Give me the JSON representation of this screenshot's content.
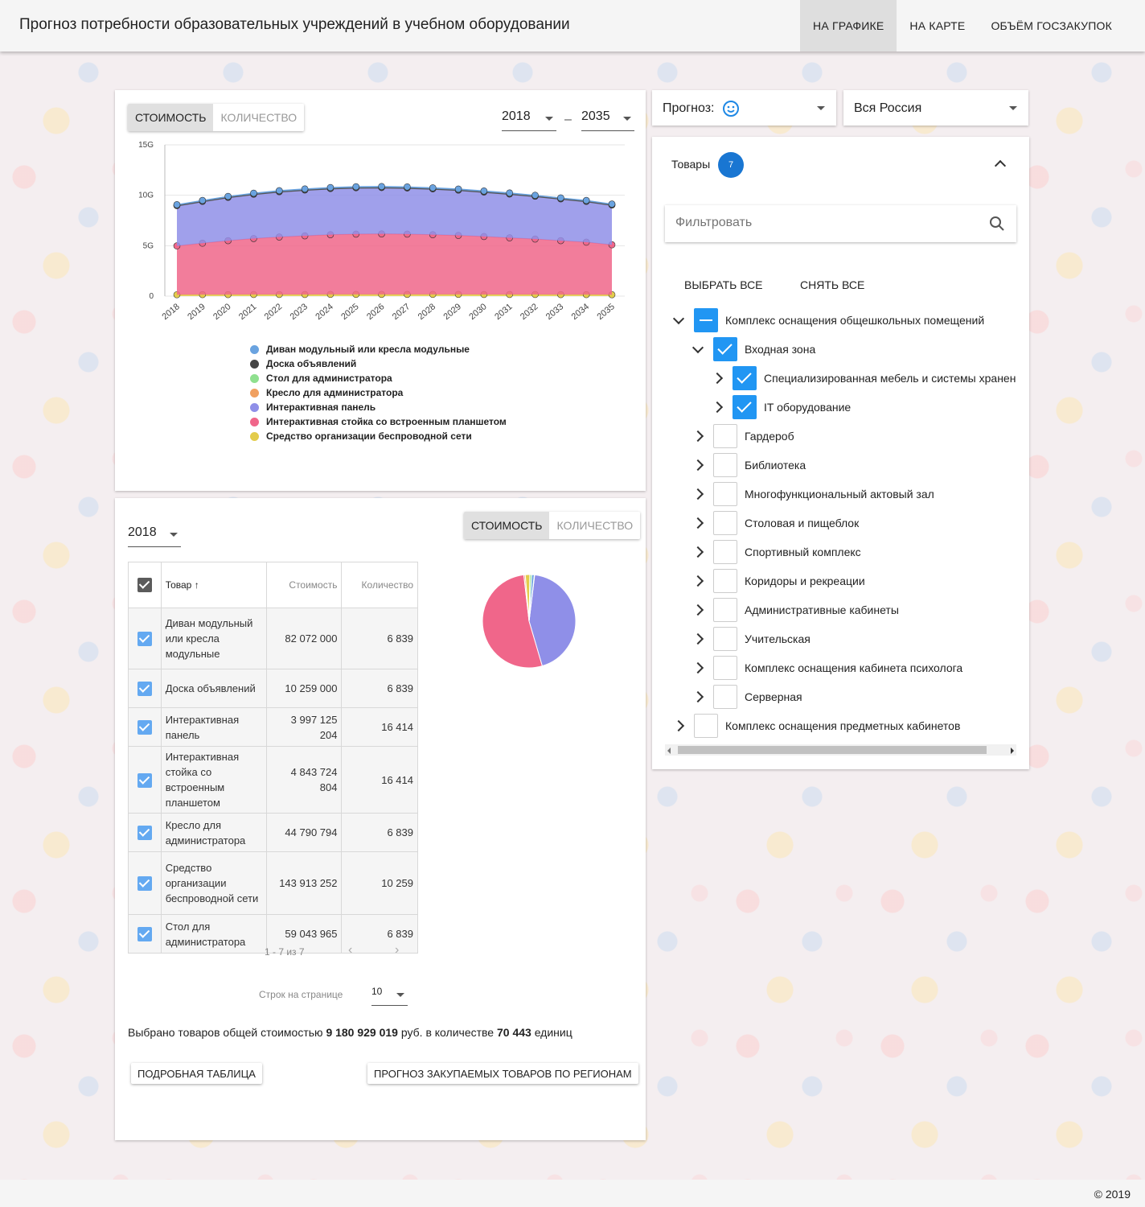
{
  "header": {
    "title": "Прогноз потребности образовательных учреждений в учебном оборудовании",
    "nav": [
      "На графике",
      "На карте",
      "Объём госзакупок"
    ]
  },
  "chart_panel": {
    "toggle": [
      "Стоимость",
      "Количество"
    ],
    "year_from": "2018",
    "year_to": "2035",
    "dash": "–"
  },
  "chart_data": {
    "type": "area",
    "x": [
      "2018",
      "2019",
      "2020",
      "2021",
      "2022",
      "2023",
      "2024",
      "2025",
      "2026",
      "2027",
      "2028",
      "2029",
      "2030",
      "2031",
      "2032",
      "2033",
      "2034",
      "2035"
    ],
    "ylim": [
      0,
      15
    ],
    "yticks": [
      "0",
      "5G",
      "10G",
      "15G"
    ],
    "series": [
      {
        "name": "Средство организации беспроводной сети",
        "color": "#e3cc4b",
        "values": [
          0.14,
          0.15,
          0.15,
          0.16,
          0.16,
          0.16,
          0.17,
          0.17,
          0.17,
          0.17,
          0.17,
          0.17,
          0.16,
          0.16,
          0.16,
          0.15,
          0.15,
          0.14
        ]
      },
      {
        "name": "Интерактивная стойка со встроенным планшетом",
        "color": "#f0668a",
        "values": [
          4.84,
          5.1,
          5.35,
          5.55,
          5.7,
          5.82,
          5.92,
          5.98,
          6.0,
          5.98,
          5.92,
          5.85,
          5.75,
          5.62,
          5.5,
          5.35,
          5.2,
          4.95
        ]
      },
      {
        "name": "Интерактивная панель",
        "color": "#8f8fe8",
        "values": [
          4.0,
          4.15,
          4.3,
          4.4,
          4.5,
          4.55,
          4.58,
          4.6,
          4.6,
          4.58,
          4.55,
          4.5,
          4.42,
          4.35,
          4.25,
          4.15,
          4.05,
          3.95
        ]
      },
      {
        "name": "Доска объявлений",
        "color": "#444444",
        "values": [
          0.01,
          0.01,
          0.01,
          0.01,
          0.01,
          0.01,
          0.01,
          0.01,
          0.01,
          0.01,
          0.01,
          0.01,
          0.01,
          0.01,
          0.01,
          0.01,
          0.01,
          0.01
        ]
      },
      {
        "name": "Диван модульный или кресла модульные",
        "color": "#6aa3e0",
        "values": [
          0.08,
          0.08,
          0.08,
          0.09,
          0.09,
          0.09,
          0.09,
          0.09,
          0.09,
          0.09,
          0.09,
          0.09,
          0.09,
          0.09,
          0.08,
          0.08,
          0.08,
          0.08
        ]
      }
    ],
    "legend": [
      {
        "label": "Диван модульный или кресла модульные",
        "color": "#6aa3e0"
      },
      {
        "label": "Доска объявлений",
        "color": "#444444"
      },
      {
        "label": "Стол для администратора",
        "color": "#8fe08f"
      },
      {
        "label": "Кресло для администратора",
        "color": "#f0a060"
      },
      {
        "label": "Интерактивная панель",
        "color": "#8f8fe8"
      },
      {
        "label": "Интерактивная стойка со встроенным планшетом",
        "color": "#f0668a"
      },
      {
        "label": "Средство организации беспроводной сети",
        "color": "#e3cc4b"
      }
    ]
  },
  "table_panel": {
    "year": "2018",
    "toggle": [
      "Стоимость",
      "Количество"
    ],
    "columns": [
      "Товар",
      "Стоимость",
      "Количество"
    ],
    "rows": [
      {
        "name": "Диван модульный или кресла модульные",
        "cost": "82 072 000",
        "qty": "6 839"
      },
      {
        "name": "Доска объявлений",
        "cost": "10 259 000",
        "qty": "6 839"
      },
      {
        "name": "Интерактивная панель",
        "cost": "3 997 125 204",
        "qty": "16 414"
      },
      {
        "name": "Интерактивная стойка со встроенным планшетом",
        "cost": "4 843 724 804",
        "qty": "16 414"
      },
      {
        "name": "Кресло для администратора",
        "cost": "44 790 794",
        "qty": "6 839"
      },
      {
        "name": "Средство организации беспроводной сети",
        "cost": "143 913 252",
        "qty": "10 259"
      },
      {
        "name": "Стол для администратора",
        "cost": "59 043 965",
        "qty": "6 839"
      }
    ],
    "pagination": "1 - 7 из 7",
    "rows_per_page_label": "Строк на странице",
    "rows_per_page": "10",
    "summary": {
      "prefix": "Выбрано товаров общей стоимостью",
      "total_cost": "9 180 929 019",
      "middle": "руб. в количестве",
      "total_qty": "70 443",
      "suffix": "единиц"
    },
    "buttons": [
      "Подробная таблица",
      "Прогноз закупаемых товаров по регионам"
    ]
  },
  "pie_data": {
    "type": "pie",
    "values": [
      82072000,
      10259000,
      3997125204,
      4843724804,
      44790794,
      143913252,
      59043965
    ],
    "colors": [
      "#6aa3e0",
      "#444444",
      "#8f8fe8",
      "#f0668a",
      "#f0a060",
      "#e3cc4b",
      "#8fe08f"
    ]
  },
  "side": {
    "forecast_label": "Прогноз:",
    "region": "Вся Россия",
    "goods_label": "Товары",
    "goods_count": "7",
    "filter_placeholder": "Фильтровать",
    "select_all": "Выбрать все",
    "clear_all": "Снять все",
    "tree": [
      {
        "label": "Комплекс оснащения общешкольных помещений",
        "state": "partial",
        "expanded": true,
        "level": 0
      },
      {
        "label": "Входная зона",
        "state": "checked",
        "expanded": true,
        "level": 1
      },
      {
        "label": "Специализированная мебель и системы хранен",
        "state": "checked",
        "expanded": false,
        "level": 2
      },
      {
        "label": "IT оборудование",
        "state": "checked",
        "expanded": false,
        "level": 2
      },
      {
        "label": "Гардероб",
        "state": "none",
        "expanded": false,
        "level": 1
      },
      {
        "label": "Библиотека",
        "state": "none",
        "expanded": false,
        "level": 1
      },
      {
        "label": "Многофункциональный актовый зал",
        "state": "none",
        "expanded": false,
        "level": 1
      },
      {
        "label": "Столовая и пищеблок",
        "state": "none",
        "expanded": false,
        "level": 1
      },
      {
        "label": "Спортивный комплекс",
        "state": "none",
        "expanded": false,
        "level": 1
      },
      {
        "label": "Коридоры и рекреации",
        "state": "none",
        "expanded": false,
        "level": 1
      },
      {
        "label": "Административные кабинеты",
        "state": "none",
        "expanded": false,
        "level": 1
      },
      {
        "label": "Учительская",
        "state": "none",
        "expanded": false,
        "level": 1
      },
      {
        "label": "Комплекс оснащения кабинета психолога",
        "state": "none",
        "expanded": false,
        "level": 1
      },
      {
        "label": "Серверная",
        "state": "none",
        "expanded": false,
        "level": 1
      },
      {
        "label": "Комплекс оснащения предметных кабинетов",
        "state": "none",
        "expanded": false,
        "level": 0
      }
    ]
  },
  "footer": {
    "copyright": "© 2019"
  }
}
